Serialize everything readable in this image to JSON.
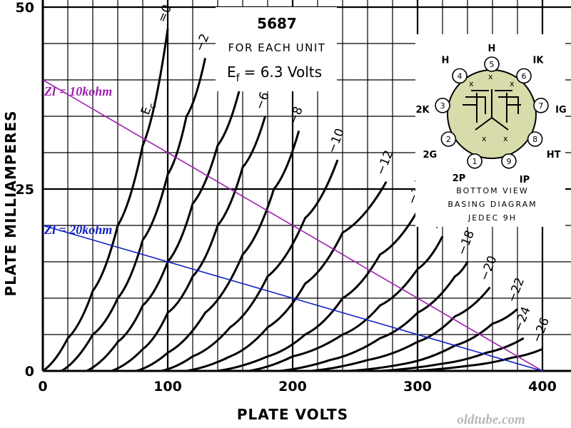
{
  "chart_data": {
    "type": "line",
    "title": "5687",
    "subtitle": "FOR EACH UNIT",
    "heater": "E",
    "heater_sub": "f",
    "heater_value": "= 6.3 Volts",
    "xlabel": "PLATE VOLTS",
    "ylabel": "PLATE MILLIAMPERES",
    "xlim": [
      0,
      400
    ],
    "ylim": [
      0,
      50
    ],
    "x_ticks": [
      0,
      100,
      200,
      300,
      400
    ],
    "y_ticks": [
      0,
      25,
      50
    ],
    "x_tick_labels": [
      "0",
      "100",
      "200",
      "300",
      "400"
    ],
    "y_tick_labels": [
      "0",
      "25",
      "50"
    ],
    "grid": true,
    "curve_family_symbol": "E",
    "curve_family_sub": "c",
    "series": [
      {
        "name": "Ec = 0",
        "label": "=0",
        "points": [
          [
            0,
            0
          ],
          [
            20,
            4.5
          ],
          [
            40,
            11
          ],
          [
            60,
            20
          ],
          [
            80,
            31
          ],
          [
            100,
            47
          ]
        ]
      },
      {
        "name": "Ec = -2",
        "label": "−2",
        "points": [
          [
            15,
            0
          ],
          [
            40,
            5
          ],
          [
            60,
            10
          ],
          [
            80,
            18
          ],
          [
            100,
            27
          ],
          [
            115,
            35
          ],
          [
            130,
            43
          ]
        ]
      },
      {
        "name": "Ec = -4",
        "label": "−4",
        "points": [
          [
            35,
            0
          ],
          [
            60,
            4
          ],
          [
            80,
            9
          ],
          [
            100,
            15
          ],
          [
            120,
            23
          ],
          [
            140,
            31
          ],
          [
            158,
            39
          ]
        ]
      },
      {
        "name": "Ec = -6",
        "label": "−6",
        "points": [
          [
            55,
            0
          ],
          [
            80,
            3
          ],
          [
            100,
            8
          ],
          [
            120,
            13
          ],
          [
            140,
            20
          ],
          [
            160,
            28
          ],
          [
            178,
            35
          ]
        ]
      },
      {
        "name": "Ec = -8",
        "label": "−8",
        "points": [
          [
            75,
            0
          ],
          [
            100,
            2.5
          ],
          [
            130,
            8
          ],
          [
            160,
            16
          ],
          [
            185,
            25
          ],
          [
            205,
            33
          ]
        ]
      },
      {
        "name": "Ec = -10",
        "label": "−10",
        "points": [
          [
            95,
            0
          ],
          [
            120,
            2
          ],
          [
            150,
            6
          ],
          [
            180,
            13
          ],
          [
            210,
            21
          ],
          [
            236,
            29
          ]
        ]
      },
      {
        "name": "Ec = -12",
        "label": "−12",
        "points": [
          [
            115,
            0
          ],
          [
            150,
            2
          ],
          [
            180,
            6
          ],
          [
            210,
            12
          ],
          [
            240,
            19
          ],
          [
            275,
            26
          ]
        ]
      },
      {
        "name": "Ec = -14",
        "label": "−14",
        "points": [
          [
            140,
            0
          ],
          [
            180,
            2
          ],
          [
            210,
            5
          ],
          [
            240,
            10
          ],
          [
            270,
            16
          ],
          [
            300,
            22
          ]
        ]
      },
      {
        "name": "Ec = -16",
        "label": "−16",
        "points": [
          [
            165,
            0
          ],
          [
            200,
            2
          ],
          [
            240,
            5
          ],
          [
            270,
            9
          ],
          [
            300,
            14
          ],
          [
            320,
            18.5
          ]
        ]
      },
      {
        "name": "Ec = -18",
        "label": "−18",
        "points": [
          [
            190,
            0
          ],
          [
            230,
            1.5
          ],
          [
            270,
            4.5
          ],
          [
            300,
            8
          ],
          [
            330,
            13
          ],
          [
            340,
            15
          ]
        ]
      },
      {
        "name": "Ec = -20",
        "label": "−20",
        "points": [
          [
            215,
            0
          ],
          [
            260,
            1.5
          ],
          [
            300,
            4
          ],
          [
            330,
            7.5
          ],
          [
            358,
            11.5
          ]
        ]
      },
      {
        "name": "Ec = -22",
        "label": "−22",
        "points": [
          [
            245,
            0
          ],
          [
            290,
            1
          ],
          [
            330,
            3.5
          ],
          [
            360,
            6.5
          ],
          [
            380,
            8.5
          ]
        ]
      },
      {
        "name": "Ec = -24",
        "label": "−24",
        "points": [
          [
            270,
            0
          ],
          [
            320,
            1
          ],
          [
            355,
            2.5
          ],
          [
            385,
            4.5
          ]
        ]
      },
      {
        "name": "Ec = -26",
        "label": "−26",
        "points": [
          [
            295,
            0
          ],
          [
            340,
            0.7
          ],
          [
            375,
            1.8
          ],
          [
            400,
            3
          ]
        ]
      }
    ],
    "load_lines": [
      {
        "label": "Zl = 10kohm",
        "color": "#a020b0",
        "from": [
          0,
          40
        ],
        "to": [
          400,
          0
        ]
      },
      {
        "label": "Zl = 20kohm",
        "color": "#1020c0",
        "from": [
          0,
          20
        ],
        "to": [
          400,
          0
        ]
      }
    ]
  },
  "basing_diagram": {
    "pins": [
      {
        "num": "1",
        "label": "2P"
      },
      {
        "num": "2",
        "label": "2G"
      },
      {
        "num": "3",
        "label": "2K"
      },
      {
        "num": "4",
        "label": "H"
      },
      {
        "num": "5",
        "label": "H"
      },
      {
        "num": "6",
        "label": "IK"
      },
      {
        "num": "7",
        "label": "IG"
      },
      {
        "num": "8",
        "label": "HT"
      },
      {
        "num": "9",
        "label": "IP"
      }
    ],
    "caption_1": "BOTTOM VIEW",
    "caption_2": "BASING DIAGRAM",
    "caption_3": "JEDEC 9H"
  },
  "watermark": "oldtube.com",
  "colors": {
    "curve": "#000000",
    "grid": "#000000",
    "bulb_fill": "#d8dcaa"
  }
}
